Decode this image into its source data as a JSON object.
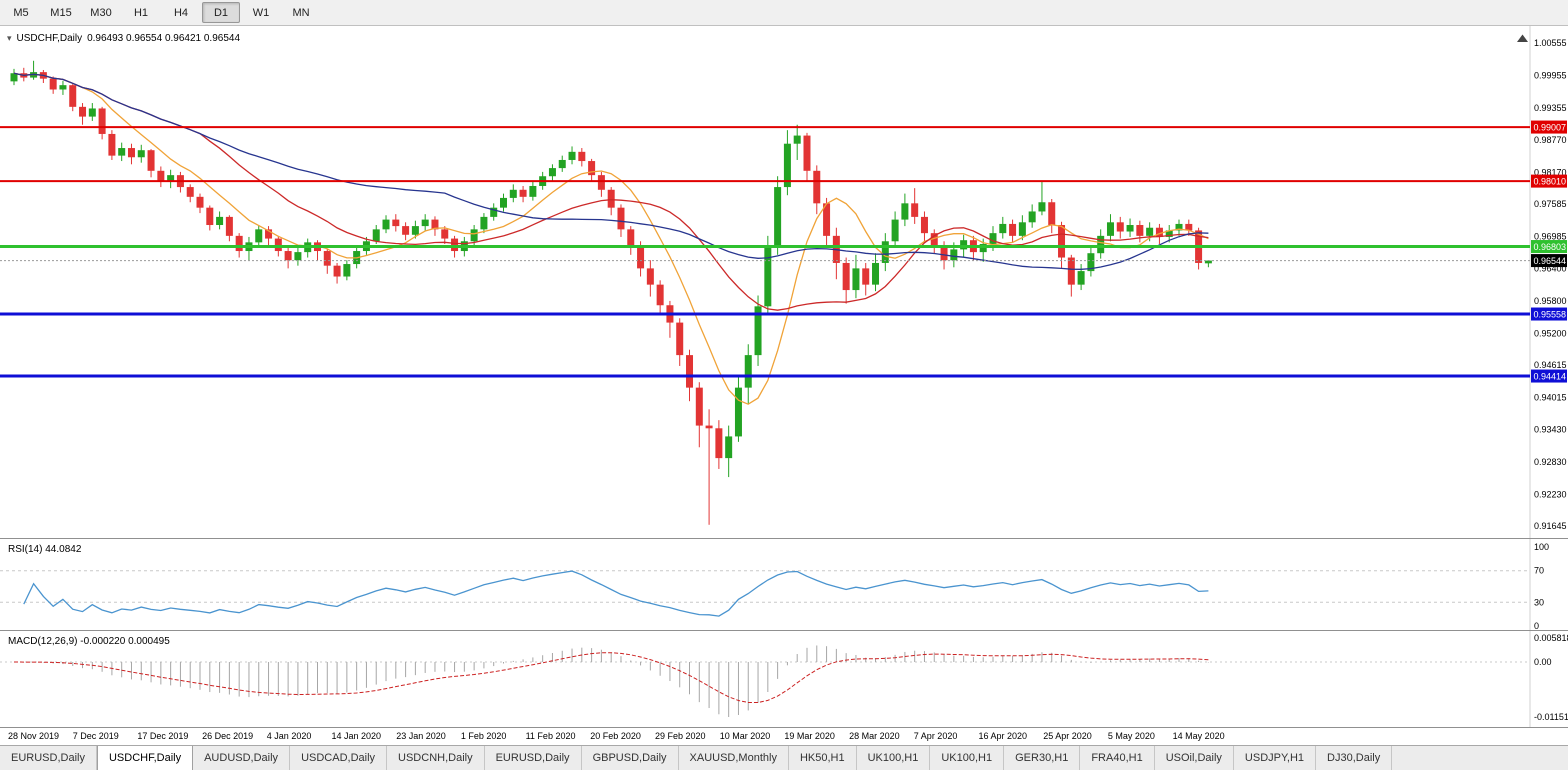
{
  "toolbar": {
    "timeframes": [
      "M5",
      "M15",
      "M30",
      "H1",
      "H4",
      "D1",
      "W1",
      "MN"
    ],
    "active": "D1"
  },
  "chart": {
    "title": "USDCHF,Daily",
    "ohlc": "0.96493 0.96554 0.96421 0.96544"
  },
  "rsi": {
    "label": "RSI(14) 44.0842"
  },
  "macd": {
    "label": "MACD(12,26,9) -0.000220 0.000495"
  },
  "date_axis": [
    "28 Nov 2019",
    "7 Dec 2019",
    "17 Dec 2019",
    "26 Dec 2019",
    "4 Jan 2020",
    "14 Jan 2020",
    "23 Jan 2020",
    "1 Feb 2020",
    "11 Feb 2020",
    "20 Feb 2020",
    "29 Feb 2020",
    "10 Mar 2020",
    "19 Mar 2020",
    "28 Mar 2020",
    "7 Apr 2020",
    "16 Apr 2020",
    "25 Apr 2020",
    "5 May 2020",
    "14 May 2020"
  ],
  "tabs": {
    "active_index": 1,
    "items": [
      "EURUSD,Daily",
      "USDCHF,Daily",
      "AUDUSD,Daily",
      "USDCAD,Daily",
      "USDCNH,Daily",
      "EURUSD,Daily",
      "GBPUSD,Daily",
      "XAUUSD,Monthly",
      "HK50,H1",
      "UK100,H1",
      "UK100,H1",
      "GER30,H1",
      "FRA40,H1",
      "USOil,Daily",
      "USDJPY,H1",
      "DJ30,Daily"
    ],
    "note": "active tab is USDCHF,Daily"
  },
  "chart_data": {
    "type": "candlestick",
    "symbol": "USDCHF",
    "timeframe": "Daily",
    "ylim": [
      0.915,
      1.0065
    ],
    "y_axis_ticks": [
      "1.00555",
      "0.99955",
      "0.99355",
      "0.98770",
      "0.98170",
      "0.97585",
      "0.96985",
      "0.96400",
      "0.95800",
      "0.95200",
      "0.94615",
      "0.94015",
      "0.93430",
      "0.92830",
      "0.92230",
      "0.91645"
    ],
    "colors": {
      "bull": "#23a323",
      "bear": "#e23434",
      "rsi_line": "#4a94cf",
      "macd_hist": "#a6a6a6",
      "macd_signal": "#cc2222",
      "current_price_box": "#000000"
    },
    "moving_averages": [
      {
        "name": "fast-ma",
        "period": 8,
        "color": "#f0a338"
      },
      {
        "name": "mid-ma",
        "period": 20,
        "color": "#cc2929"
      },
      {
        "name": "slow-ma",
        "period": 45,
        "color": "#27358f"
      }
    ],
    "hlines": [
      {
        "price": 0.99007,
        "label": "0.99007",
        "color": "#e00000",
        "width": 2
      },
      {
        "price": 0.9801,
        "label": "0.98010",
        "color": "#e00000",
        "width": 2
      },
      {
        "price": 0.96803,
        "label": "0.96803",
        "color": "#2fc12f",
        "width": 3
      },
      {
        "price": 0.95558,
        "label": "0.95558",
        "color": "#0f0fd6",
        "width": 3
      },
      {
        "price": 0.94414,
        "label": "0.94414",
        "color": "#0f0fd6",
        "width": 3
      }
    ],
    "current_price": {
      "value": 0.96544,
      "label": "0.96544"
    },
    "rsi": {
      "period": 14,
      "current": 44.0842,
      "levels": [
        "100",
        "70",
        "30",
        "0"
      ],
      "overbought": 70,
      "oversold": 30
    },
    "macd": {
      "fast": 12,
      "slow": 26,
      "signal": 9,
      "main_value": -0.00022,
      "signal_value": 0.000495,
      "axis_labels": [
        "0.005818",
        "0.00",
        "-0.011514"
      ]
    },
    "candles": [
      [
        0.9985,
        1.0008,
        0.9978,
        1.0
      ],
      [
        1.0,
        1.001,
        0.9985,
        0.9992
      ],
      [
        0.9992,
        1.0023,
        0.9988,
        1.0002
      ],
      [
        1.0002,
        1.0006,
        0.9982,
        0.999
      ],
      [
        0.999,
        0.9994,
        0.9962,
        0.997
      ],
      [
        0.997,
        0.9986,
        0.996,
        0.9978
      ],
      [
        0.9978,
        0.998,
        0.993,
        0.9938
      ],
      [
        0.9938,
        0.9945,
        0.9905,
        0.992
      ],
      [
        0.992,
        0.9945,
        0.9912,
        0.9935
      ],
      [
        0.9935,
        0.9938,
        0.9878,
        0.9888
      ],
      [
        0.9888,
        0.9895,
        0.984,
        0.9848
      ],
      [
        0.9848,
        0.9872,
        0.9838,
        0.9862
      ],
      [
        0.9862,
        0.987,
        0.9832,
        0.9845
      ],
      [
        0.9845,
        0.9868,
        0.9835,
        0.9858
      ],
      [
        0.9858,
        0.986,
        0.9808,
        0.982
      ],
      [
        0.982,
        0.9828,
        0.979,
        0.98
      ],
      [
        0.98,
        0.9822,
        0.9788,
        0.9812
      ],
      [
        0.9812,
        0.9818,
        0.978,
        0.979
      ],
      [
        0.979,
        0.9795,
        0.9762,
        0.9772
      ],
      [
        0.9772,
        0.9778,
        0.9742,
        0.9752
      ],
      [
        0.9752,
        0.9756,
        0.971,
        0.972
      ],
      [
        0.972,
        0.9745,
        0.9712,
        0.9735
      ],
      [
        0.9735,
        0.9738,
        0.969,
        0.97
      ],
      [
        0.97,
        0.9705,
        0.966,
        0.9672
      ],
      [
        0.9672,
        0.9698,
        0.9655,
        0.9688
      ],
      [
        0.9688,
        0.972,
        0.968,
        0.9712
      ],
      [
        0.9712,
        0.9718,
        0.9682,
        0.9695
      ],
      [
        0.9695,
        0.97,
        0.9662,
        0.9672
      ],
      [
        0.9672,
        0.968,
        0.964,
        0.9655
      ],
      [
        0.9655,
        0.968,
        0.9645,
        0.967
      ],
      [
        0.967,
        0.9695,
        0.966,
        0.9688
      ],
      [
        0.9688,
        0.9692,
        0.9655,
        0.9672
      ],
      [
        0.9672,
        0.9676,
        0.963,
        0.9645
      ],
      [
        0.9645,
        0.965,
        0.9612,
        0.9625
      ],
      [
        0.9625,
        0.9655,
        0.9618,
        0.9648
      ],
      [
        0.9648,
        0.968,
        0.964,
        0.9672
      ],
      [
        0.9672,
        0.9698,
        0.9665,
        0.969
      ],
      [
        0.969,
        0.972,
        0.9685,
        0.9712
      ],
      [
        0.9712,
        0.9738,
        0.9705,
        0.973
      ],
      [
        0.973,
        0.974,
        0.9708,
        0.9718
      ],
      [
        0.9718,
        0.9725,
        0.9692,
        0.9702
      ],
      [
        0.9702,
        0.9728,
        0.9695,
        0.9718
      ],
      [
        0.9718,
        0.974,
        0.971,
        0.973
      ],
      [
        0.973,
        0.9736,
        0.97,
        0.9712
      ],
      [
        0.9712,
        0.9718,
        0.9685,
        0.9695
      ],
      [
        0.9695,
        0.97,
        0.966,
        0.9672
      ],
      [
        0.9672,
        0.9698,
        0.9662,
        0.969
      ],
      [
        0.969,
        0.972,
        0.9682,
        0.9712
      ],
      [
        0.9712,
        0.9742,
        0.9705,
        0.9735
      ],
      [
        0.9735,
        0.976,
        0.9728,
        0.9752
      ],
      [
        0.9752,
        0.9778,
        0.9745,
        0.977
      ],
      [
        0.977,
        0.9795,
        0.9762,
        0.9785
      ],
      [
        0.9785,
        0.9792,
        0.9762,
        0.9772
      ],
      [
        0.9772,
        0.98,
        0.9765,
        0.9792
      ],
      [
        0.9792,
        0.9818,
        0.9785,
        0.981
      ],
      [
        0.981,
        0.9832,
        0.9802,
        0.9825
      ],
      [
        0.9825,
        0.9848,
        0.9818,
        0.984
      ],
      [
        0.984,
        0.9865,
        0.9832,
        0.9855
      ],
      [
        0.9855,
        0.9862,
        0.9828,
        0.9838
      ],
      [
        0.9838,
        0.9842,
        0.98,
        0.9812
      ],
      [
        0.9812,
        0.9818,
        0.9772,
        0.9785
      ],
      [
        0.9785,
        0.979,
        0.9738,
        0.9752
      ],
      [
        0.9752,
        0.9758,
        0.9698,
        0.9712
      ],
      [
        0.9712,
        0.9718,
        0.9665,
        0.968
      ],
      [
        0.968,
        0.969,
        0.9625,
        0.964
      ],
      [
        0.964,
        0.9655,
        0.9588,
        0.961
      ],
      [
        0.961,
        0.9618,
        0.9555,
        0.9572
      ],
      [
        0.9572,
        0.958,
        0.9512,
        0.954
      ],
      [
        0.954,
        0.9548,
        0.946,
        0.948
      ],
      [
        0.948,
        0.949,
        0.9395,
        0.942
      ],
      [
        0.942,
        0.943,
        0.931,
        0.935
      ],
      [
        0.935,
        0.938,
        0.9167,
        0.9345
      ],
      [
        0.9345,
        0.936,
        0.927,
        0.929
      ],
      [
        0.929,
        0.935,
        0.9255,
        0.933
      ],
      [
        0.933,
        0.944,
        0.932,
        0.942
      ],
      [
        0.942,
        0.95,
        0.939,
        0.948
      ],
      [
        0.948,
        0.959,
        0.946,
        0.957
      ],
      [
        0.957,
        0.97,
        0.9555,
        0.968
      ],
      [
        0.968,
        0.981,
        0.9665,
        0.979
      ],
      [
        0.979,
        0.9895,
        0.9775,
        0.987
      ],
      [
        0.987,
        0.9905,
        0.984,
        0.9885
      ],
      [
        0.9885,
        0.989,
        0.98,
        0.982
      ],
      [
        0.982,
        0.983,
        0.974,
        0.976
      ],
      [
        0.976,
        0.977,
        0.968,
        0.97
      ],
      [
        0.97,
        0.9715,
        0.962,
        0.965
      ],
      [
        0.965,
        0.966,
        0.9575,
        0.96
      ],
      [
        0.96,
        0.9665,
        0.9585,
        0.964
      ],
      [
        0.964,
        0.965,
        0.959,
        0.961
      ],
      [
        0.961,
        0.9668,
        0.9598,
        0.965
      ],
      [
        0.965,
        0.9705,
        0.9635,
        0.969
      ],
      [
        0.969,
        0.9745,
        0.9678,
        0.973
      ],
      [
        0.973,
        0.9778,
        0.9718,
        0.976
      ],
      [
        0.976,
        0.9788,
        0.9722,
        0.9735
      ],
      [
        0.9735,
        0.9745,
        0.969,
        0.9705
      ],
      [
        0.9705,
        0.9712,
        0.9668,
        0.9682
      ],
      [
        0.9682,
        0.969,
        0.9638,
        0.9655
      ],
      [
        0.9655,
        0.9688,
        0.9642,
        0.9675
      ],
      [
        0.9675,
        0.9702,
        0.966,
        0.9692
      ],
      [
        0.9692,
        0.97,
        0.9655,
        0.967
      ],
      [
        0.967,
        0.9695,
        0.9652,
        0.9685
      ],
      [
        0.9685,
        0.9718,
        0.9672,
        0.9705
      ],
      [
        0.9705,
        0.9735,
        0.9695,
        0.9722
      ],
      [
        0.9722,
        0.973,
        0.9688,
        0.97
      ],
      [
        0.97,
        0.9738,
        0.9692,
        0.9725
      ],
      [
        0.9725,
        0.9758,
        0.9715,
        0.9745
      ],
      [
        0.9745,
        0.98,
        0.9738,
        0.9762
      ],
      [
        0.9762,
        0.9768,
        0.9705,
        0.972
      ],
      [
        0.972,
        0.9726,
        0.964,
        0.966
      ],
      [
        0.966,
        0.9665,
        0.9588,
        0.961
      ],
      [
        0.961,
        0.9648,
        0.96,
        0.9635
      ],
      [
        0.9635,
        0.968,
        0.9625,
        0.9668
      ],
      [
        0.9668,
        0.9712,
        0.9658,
        0.97
      ],
      [
        0.97,
        0.974,
        0.969,
        0.9725
      ],
      [
        0.9725,
        0.9735,
        0.9695,
        0.9708
      ],
      [
        0.9708,
        0.9732,
        0.9698,
        0.972
      ],
      [
        0.972,
        0.9728,
        0.9688,
        0.97
      ],
      [
        0.97,
        0.9725,
        0.969,
        0.9715
      ],
      [
        0.9715,
        0.9722,
        0.9685,
        0.9698
      ],
      [
        0.9698,
        0.972,
        0.9688,
        0.971
      ],
      [
        0.971,
        0.973,
        0.97,
        0.9722
      ],
      [
        0.9722,
        0.973,
        0.97,
        0.971
      ],
      [
        0.971,
        0.9715,
        0.9638,
        0.965
      ],
      [
        0.96493,
        0.96554,
        0.96421,
        0.96544
      ]
    ]
  }
}
